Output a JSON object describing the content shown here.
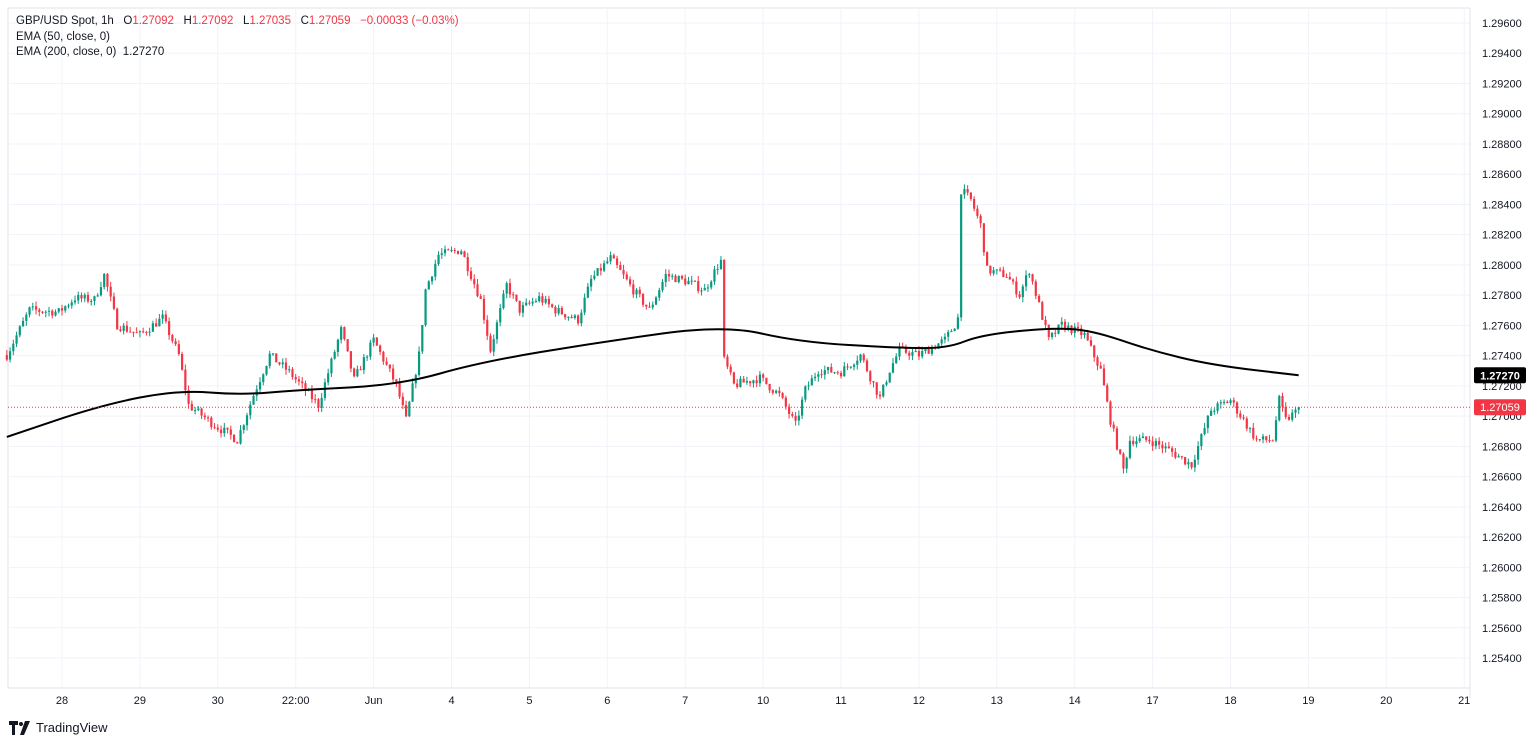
{
  "header": {
    "symbol": "GBP/USD Spot, 1h",
    "o_label": "O",
    "o": "1.27092",
    "h_label": "H",
    "h": "1.27092",
    "l_label": "L",
    "l": "1.27035",
    "c_label": "C",
    "c": "1.27059",
    "change": "−0.00033 (−0.03%)",
    "ema50": "EMA (50, close, 0)",
    "ema200": "EMA (200, close, 0)",
    "ema200_value": "1.27270"
  },
  "brand": "TradingView",
  "colors": {
    "up": "#089981",
    "down": "#f23645",
    "ema": "#000000",
    "grid": "#f0f3fa",
    "last_price": "#f23645"
  },
  "chart_data": {
    "type": "candlestick",
    "title": "GBP/USD Spot, 1h",
    "grid": true,
    "ylim": [
      1.253,
      1.297
    ],
    "y_ticks": [
      "1.29600",
      "1.29400",
      "1.29200",
      "1.29000",
      "1.28800",
      "1.28600",
      "1.28400",
      "1.28200",
      "1.28000",
      "1.27800",
      "1.27600",
      "1.27400",
      "1.27200",
      "1.27000",
      "1.26800",
      "1.26600",
      "1.26400",
      "1.26200",
      "1.26000",
      "1.25800",
      "1.25600",
      "1.25400"
    ],
    "x_ticks": [
      "28",
      "29",
      "30",
      "22:00",
      "Jun",
      "4",
      "5",
      "6",
      "7",
      "10",
      "11",
      "12",
      "13",
      "14",
      "17",
      "18",
      "19",
      "20",
      "21"
    ],
    "price_path": [
      [
        "27 07:00",
        1.27404
      ],
      [
        "27 14:00",
        1.27702
      ],
      [
        "27 23:00",
        1.27689
      ],
      [
        "28 04:00",
        1.27781
      ],
      [
        "28 10:00",
        1.2777
      ],
      [
        "28 13:00",
        1.27933
      ],
      [
        "28 17:00",
        1.27603
      ],
      [
        "29 00:00",
        1.27537
      ],
      [
        "29 07:00",
        1.27649
      ],
      [
        "29 12:00",
        1.27404
      ],
      [
        "29 15:00",
        1.27073
      ],
      [
        "29 23:00",
        1.26941
      ],
      [
        "30 06:00",
        1.26842
      ],
      [
        "30 11:00",
        1.2714
      ],
      [
        "30 16:00",
        1.27404
      ],
      [
        "30 22:00",
        1.27292
      ],
      [
        "31 07:00",
        1.27073
      ],
      [
        "31 14:00",
        1.2757
      ],
      [
        "31 18:00",
        1.27239
      ],
      [
        "Jun 3 00:00",
        1.27503
      ],
      [
        "Jun 3 07:00",
        1.27206
      ],
      [
        "Jun 3 10:00",
        1.26974
      ],
      [
        "Jun 3 14:00",
        1.27404
      ],
      [
        "Jun 3 16:00",
        1.27834
      ],
      [
        "Jun 3 20:00",
        1.28066
      ],
      [
        "4 03:00",
        1.28099
      ],
      [
        "4 09:00",
        1.27768
      ],
      [
        "4 12:00",
        1.27437
      ],
      [
        "4 17:00",
        1.27867
      ],
      [
        "4 21:00",
        1.27702
      ],
      [
        "5 03:00",
        1.27781
      ],
      [
        "5 08:00",
        1.27702
      ],
      [
        "5 15:00",
        1.27636
      ],
      [
        "5 19:00",
        1.279
      ],
      [
        "6 01:00",
        1.28046
      ],
      [
        "6 08:00",
        1.27834
      ],
      [
        "6 13:00",
        1.27702
      ],
      [
        "6 18:00",
        1.27933
      ],
      [
        "7 01:00",
        1.27887
      ],
      [
        "7 06:00",
        1.27834
      ],
      [
        "7 11:00",
        1.28033
      ],
      [
        "7 12:00",
        1.27371
      ],
      [
        "7 15:00",
        1.27206
      ],
      [
        "7 23:00",
        1.27252
      ],
      [
        "10 05:00",
        1.2714
      ],
      [
        "10 10:00",
        1.26941
      ],
      [
        "10 13:00",
        1.27173
      ],
      [
        "10 17:00",
        1.27305
      ],
      [
        "11 00:00",
        1.27292
      ],
      [
        "11 06:00",
        1.27404
      ],
      [
        "11 12:00",
        1.27119
      ],
      [
        "11 15:00",
        1.27305
      ],
      [
        "11 18:00",
        1.27437
      ],
      [
        "12 00:00",
        1.27404
      ],
      [
        "12 08:00",
        1.27503
      ],
      [
        "12 12:00",
        1.27636
      ],
      [
        "12 13:00",
        1.28496
      ],
      [
        "12 16:00",
        1.2843
      ],
      [
        "12 19:00",
        1.28264
      ],
      [
        "12 21:00",
        1.27966
      ],
      [
        "13 03:00",
        1.27933
      ],
      [
        "13 07:00",
        1.27801
      ],
      [
        "13 10:00",
        1.27966
      ],
      [
        "13 13:00",
        1.27735
      ],
      [
        "13 16:00",
        1.27503
      ],
      [
        "13 20:00",
        1.27603
      ],
      [
        "14 03:00",
        1.27537
      ],
      [
        "14 08:00",
        1.27305
      ],
      [
        "14 11:00",
        1.26974
      ],
      [
        "14 15:00",
        1.26643
      ],
      [
        "14 17:00",
        1.26842
      ],
      [
        "14 23:00",
        1.26842
      ],
      [
        "17 05:00",
        1.26776
      ],
      [
        "17 12:00",
        1.26677
      ],
      [
        "17 18:00",
        1.2704
      ],
      [
        "18 00:00",
        1.27106
      ],
      [
        "18 04:00",
        1.26974
      ],
      [
        "18 08:00",
        1.26842
      ],
      [
        "18 13:00",
        1.26842
      ],
      [
        "18 15:00",
        1.27106
      ],
      [
        "18 17:00",
        1.26974
      ],
      [
        "18 22:00",
        1.27059
      ]
    ],
    "ema200": [
      [
        "27 07:00",
        1.26862
      ],
      [
        "28 12:00",
        1.27073
      ],
      [
        "29 12:00",
        1.27173
      ],
      [
        "30 07:00",
        1.2714
      ],
      [
        "31 01:00",
        1.27173
      ],
      [
        "Jun 3 08:00",
        1.27206
      ],
      [
        "4 09:00",
        1.27358
      ],
      [
        "5 22:00",
        1.2749
      ],
      [
        "7 12:00",
        1.27603
      ],
      [
        "10 11:00",
        1.2749
      ],
      [
        "11 18:00",
        1.2745
      ],
      [
        "12 09:00",
        1.2745
      ],
      [
        "12 19:00",
        1.27537
      ],
      [
        "13 16:00",
        1.27583
      ],
      [
        "14 05:00",
        1.2757
      ],
      [
        "14 23:00",
        1.27437
      ],
      [
        "17 18:00",
        1.27338
      ],
      [
        "18 21:00",
        1.2727
      ]
    ],
    "last_price": "1.27059",
    "ema200_last": "1.27270"
  }
}
